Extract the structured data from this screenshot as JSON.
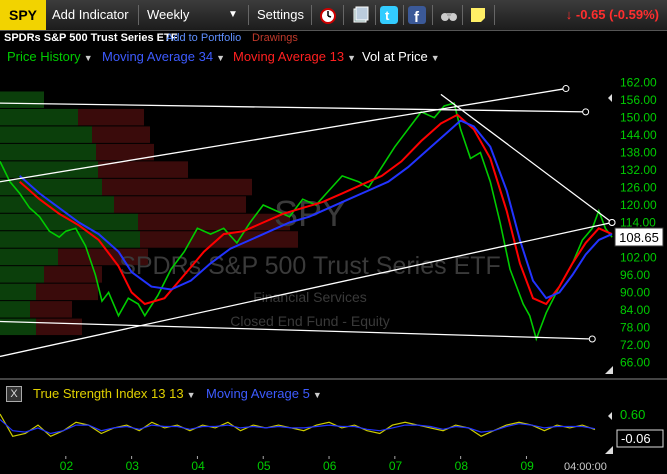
{
  "toolbar": {
    "symbol": "SPY",
    "add_indicator": "Add Indicator",
    "period": "Weekly",
    "settings": "Settings",
    "change": "-0.65 (-0.59%)",
    "icons": [
      "alarm-clock-icon",
      "save-icon",
      "twitter-icon",
      "facebook-icon",
      "binoculars-icon",
      "sticky-note-icon"
    ]
  },
  "subheader": {
    "name": "SPDRs S&P 500 Trust Series ETF",
    "add_to_portfolio": "Add to Portfolio",
    "drawings": "Drawings"
  },
  "legend": {
    "price_history": "Price History",
    "ma34": "Moving Average 34",
    "ma13": "Moving Average 13",
    "vol_at_price": "Vol at Price"
  },
  "watermark": {
    "symbol": "SPY",
    "name": "SPDRs S&P 500 Trust Series ETF",
    "sector": "Financial Services",
    "category": "Closed End Fund - Equity"
  },
  "price_label": "108.65",
  "lower_panel": {
    "indicator": "True Strength Index 13 13",
    "ma": "Moving Average 5",
    "value_label": "-0.06",
    "tick_top": "0.60",
    "close_glyph": "X"
  },
  "time_label": "04:00:00",
  "colors": {
    "price": "#00cc00",
    "ma34": "#2233ff",
    "ma13": "#ff0000",
    "tsi": "#cccc00",
    "tsi_ma": "#2233ff",
    "change_down": "#ff2e2e",
    "axis": "#00cc00",
    "symbol_bg": "#f2d300"
  },
  "chart_data": {
    "type": "line",
    "title": "SPY",
    "ylim": [
      63,
      165
    ],
    "y_ticks": [
      162,
      156,
      150,
      144,
      138,
      132,
      126,
      120,
      114,
      108,
      102,
      96,
      90,
      84,
      78,
      72,
      66
    ],
    "x_ticks": [
      "02",
      "03",
      "04",
      "05",
      "06",
      "07",
      "08",
      "09"
    ],
    "x_tick_times": [
      2002.0,
      2003.0,
      2004.0,
      2005.0,
      2006.0,
      2007.0,
      2008.0,
      2009.0
    ],
    "x_range": [
      2001.0,
      2010.3
    ],
    "last_price": 108.65,
    "series": [
      {
        "name": "Price History",
        "t": [
          2001.0,
          2001.15,
          2001.3,
          2001.45,
          2001.6,
          2001.75,
          2001.9,
          2002.0,
          2002.15,
          2002.3,
          2002.45,
          2002.55,
          2002.65,
          2002.8,
          2002.95,
          2003.1,
          2003.2,
          2003.4,
          2003.6,
          2003.8,
          2004.0,
          2004.2,
          2004.4,
          2004.6,
          2004.8,
          2005.0,
          2005.2,
          2005.4,
          2005.6,
          2005.8,
          2006.0,
          2006.2,
          2006.45,
          2006.6,
          2006.8,
          2007.0,
          2007.2,
          2007.4,
          2007.6,
          2007.75,
          2007.9,
          2008.0,
          2008.15,
          2008.3,
          2008.45,
          2008.6,
          2008.75,
          2008.85,
          2008.95,
          2009.05,
          2009.15,
          2009.3,
          2009.5,
          2009.7,
          2009.85,
          2010.0,
          2010.1,
          2010.2,
          2010.3
        ],
        "values": [
          135,
          128,
          124,
          119,
          116,
          111,
          109,
          111,
          112,
          106,
          96,
          87,
          90,
          82,
          88,
          86,
          82,
          89,
          98,
          104,
          112,
          110,
          112,
          107,
          114,
          120,
          118,
          116,
          122,
          120,
          125,
          130,
          128,
          126,
          133,
          140,
          146,
          152,
          150,
          154,
          155,
          146,
          136,
          138,
          128,
          114,
          98,
          92,
          86,
          82,
          74,
          83,
          92,
          100,
          108,
          112,
          118,
          112,
          109
        ]
      },
      {
        "name": "Moving Average 13",
        "t": [
          2001.3,
          2001.6,
          2001.9,
          2002.2,
          2002.5,
          2002.8,
          2003.0,
          2003.2,
          2003.5,
          2003.8,
          2004.1,
          2004.4,
          2004.7,
          2005.0,
          2005.3,
          2005.6,
          2005.9,
          2006.2,
          2006.5,
          2006.8,
          2007.1,
          2007.4,
          2007.7,
          2007.95,
          2008.2,
          2008.45,
          2008.7,
          2008.9,
          2009.1,
          2009.3,
          2009.5,
          2009.7,
          2009.9,
          2010.1,
          2010.3
        ],
        "values": [
          128,
          122,
          117,
          113,
          108,
          99,
          90,
          86,
          88,
          96,
          104,
          110,
          111,
          114,
          117,
          119,
          121,
          124,
          127,
          130,
          135,
          142,
          148,
          151,
          146,
          136,
          118,
          100,
          88,
          86,
          92,
          100,
          107,
          112,
          110
        ]
      },
      {
        "name": "Moving Average 34",
        "t": [
          2001.3,
          2001.6,
          2001.9,
          2002.2,
          2002.5,
          2002.8,
          2003.0,
          2003.3,
          2003.6,
          2003.9,
          2004.2,
          2004.5,
          2004.8,
          2005.1,
          2005.4,
          2005.7,
          2006.0,
          2006.3,
          2006.6,
          2006.9,
          2007.2,
          2007.5,
          2007.8,
          2008.0,
          2008.2,
          2008.45,
          2008.7,
          2008.9,
          2009.1,
          2009.3,
          2009.5,
          2009.7,
          2009.9,
          2010.1,
          2010.3
        ],
        "values": [
          130,
          124,
          119,
          114,
          110,
          104,
          97,
          92,
          91,
          94,
          100,
          105,
          108,
          111,
          114,
          116,
          119,
          122,
          125,
          128,
          133,
          139,
          145,
          149,
          147,
          140,
          125,
          108,
          94,
          88,
          90,
          96,
          103,
          108,
          110
        ]
      }
    ],
    "vol_at_price": [
      {
        "price": 162,
        "up": 0,
        "down": 0
      },
      {
        "price": 156,
        "up": 44,
        "down": 0
      },
      {
        "price": 150,
        "up": 78,
        "down": 66
      },
      {
        "price": 144,
        "up": 92,
        "down": 58
      },
      {
        "price": 138,
        "up": 96,
        "down": 58
      },
      {
        "price": 132,
        "up": 98,
        "down": 90
      },
      {
        "price": 126,
        "up": 102,
        "down": 150
      },
      {
        "price": 120,
        "up": 114,
        "down": 132
      },
      {
        "price": 114,
        "up": 138,
        "down": 152
      },
      {
        "price": 108,
        "up": 140,
        "down": 158
      },
      {
        "price": 102,
        "up": 58,
        "down": 90
      },
      {
        "price": 96,
        "up": 44,
        "down": 58
      },
      {
        "price": 90,
        "up": 36,
        "down": 62
      },
      {
        "price": 84,
        "up": 30,
        "down": 42
      },
      {
        "price": 78,
        "up": 36,
        "down": 46
      }
    ],
    "lower_panel": {
      "ylim": [
        -0.9,
        0.75
      ],
      "y_ticks": [
        0.6
      ],
      "last_value": -0.06,
      "series": [
        {
          "name": "True Strength Index 13 13",
          "values": [
            0.5,
            -0.3,
            -0.2,
            0.1,
            -0.3,
            -0.1,
            0.2,
            0.1,
            -0.2,
            0.0,
            0.1,
            -0.1,
            0.2,
            0.0,
            0.1,
            -0.1,
            0.1,
            0.0,
            0.2,
            -0.1,
            0.1,
            0.0,
            0.1,
            0.0,
            -0.1,
            0.1,
            0.2,
            0.0,
            0.1,
            -0.1,
            -0.2,
            0.1,
            0.2,
            0.1,
            0.0,
            -0.1,
            0.1,
            0.0,
            -0.3,
            -0.1,
            0.1,
            0.2,
            0.1,
            -0.1,
            0.1,
            0.0,
            0.1,
            -0.06
          ]
        },
        {
          "name": "Moving Average 5",
          "values": [
            0.3,
            -0.1,
            -0.15,
            0.0,
            -0.2,
            -0.1,
            0.1,
            0.1,
            -0.1,
            0.0,
            0.05,
            -0.05,
            0.1,
            0.05,
            0.05,
            -0.05,
            0.05,
            0.05,
            0.1,
            0.0,
            0.05,
            0.0,
            0.05,
            0.0,
            0.0,
            0.05,
            0.1,
            0.05,
            0.05,
            -0.05,
            -0.1,
            0.0,
            0.1,
            0.1,
            0.05,
            -0.05,
            0.05,
            0.0,
            -0.15,
            -0.1,
            0.05,
            0.15,
            0.1,
            0.0,
            0.05,
            0.05,
            0.05,
            -0.03
          ]
        }
      ]
    },
    "trendlines": [
      {
        "from": [
          2001.0,
          128
        ],
        "to": [
          2009.6,
          160
        ]
      },
      {
        "from": [
          2001.0,
          155
        ],
        "to": [
          2009.9,
          152
        ]
      },
      {
        "from": [
          2007.7,
          158
        ],
        "to": [
          2010.3,
          114
        ]
      },
      {
        "from": [
          2001.0,
          68
        ],
        "to": [
          2010.3,
          114
        ]
      },
      {
        "from": [
          2001.0,
          80
        ],
        "to": [
          2010.0,
          74
        ]
      }
    ]
  }
}
